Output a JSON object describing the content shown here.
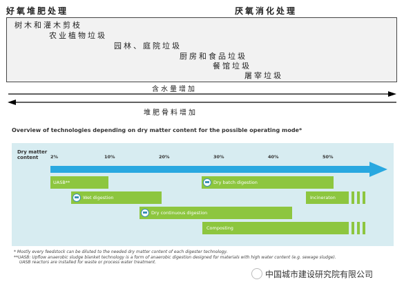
{
  "header": {
    "aerobic": "好氧堆肥处理",
    "anaerobic": "厌氧消化处理"
  },
  "waste_items": [
    "树木和灌木剪枝",
    "农业植物垃圾",
    "园林、庭院垃圾",
    "厨房和食品垃圾",
    "餐馆垃圾",
    "屠宰垃圾"
  ],
  "arrows": {
    "water_label": "含水量增加",
    "compost_label": "堆肥骨料增加"
  },
  "overview": {
    "title": "Overview of technologies depending on dry matter content for the possible operating mode*",
    "dm_label": [
      "Dry matter",
      "content"
    ],
    "percents": [
      "2%",
      "10%",
      "20%",
      "30%",
      "40%",
      "50%"
    ],
    "bars": [
      {
        "label": "UASB**",
        "icon": false
      },
      {
        "label": "Dry batch digestion",
        "icon": true
      },
      {
        "label": "Wet digestion",
        "icon": true
      },
      {
        "label": "Incineraton",
        "icon": false
      },
      {
        "label": "Dry continuous digestion",
        "icon": true
      },
      {
        "label": "Composting",
        "icon": false
      }
    ],
    "notes": [
      "* Mostly every feedstock can be diluted to the needed dry matter content of each digester technology.",
      "**UASB: Upflow anaerobic sludge blanket technology is a form of anaerobic digestion designed for materials with high water content (e.g. sewage sludge).",
      "UASB reactors are installed for waste or process water treatment."
    ],
    "colors": {
      "bar": "#8dc63f",
      "arrow": "#29a8e0",
      "panel": "#d7ecf1"
    }
  },
  "watermark": "中国城市建设研究院有限公司"
}
